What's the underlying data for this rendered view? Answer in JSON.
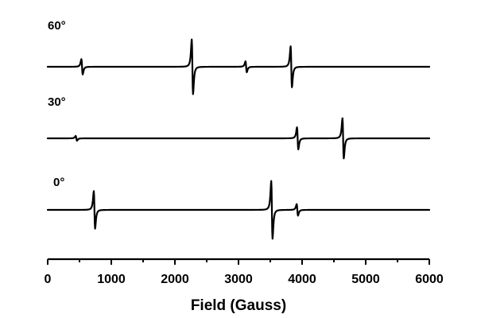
{
  "chart_data": {
    "type": "line",
    "xlabel": "Field (Gauss)",
    "ylabel": "",
    "xlim": [
      0,
      6000
    ],
    "xticks": [
      0,
      1000,
      2000,
      3000,
      4000,
      5000,
      6000
    ],
    "tick_labels": [
      "0",
      "1000",
      "2000",
      "3000",
      "4000",
      "5000",
      "6000"
    ],
    "grid": false,
    "legend": "none",
    "series": [
      {
        "name": "60°",
        "label": "60°",
        "x_range": [
          0,
          6000
        ],
        "peaks": [
          {
            "field": 540,
            "amplitude": 0.28
          },
          {
            "field": 2275,
            "amplitude": 1.0
          },
          {
            "field": 3120,
            "amplitude": 0.2
          },
          {
            "field": 3830,
            "amplitude": 0.75
          }
        ]
      },
      {
        "name": "30°",
        "label": "30°",
        "x_range": [
          0,
          6000
        ],
        "peaks": [
          {
            "field": 450,
            "amplitude": 0.12
          },
          {
            "field": 3930,
            "amplitude": 0.55
          },
          {
            "field": 4645,
            "amplitude": 1.0
          }
        ]
      },
      {
        "name": "0°",
        "label": "0°",
        "x_range": [
          0,
          6000
        ],
        "peaks": [
          {
            "field": 735,
            "amplitude": 0.65
          },
          {
            "field": 3525,
            "amplitude": 1.0
          },
          {
            "field": 3925,
            "amplitude": 0.2
          }
        ]
      }
    ]
  }
}
